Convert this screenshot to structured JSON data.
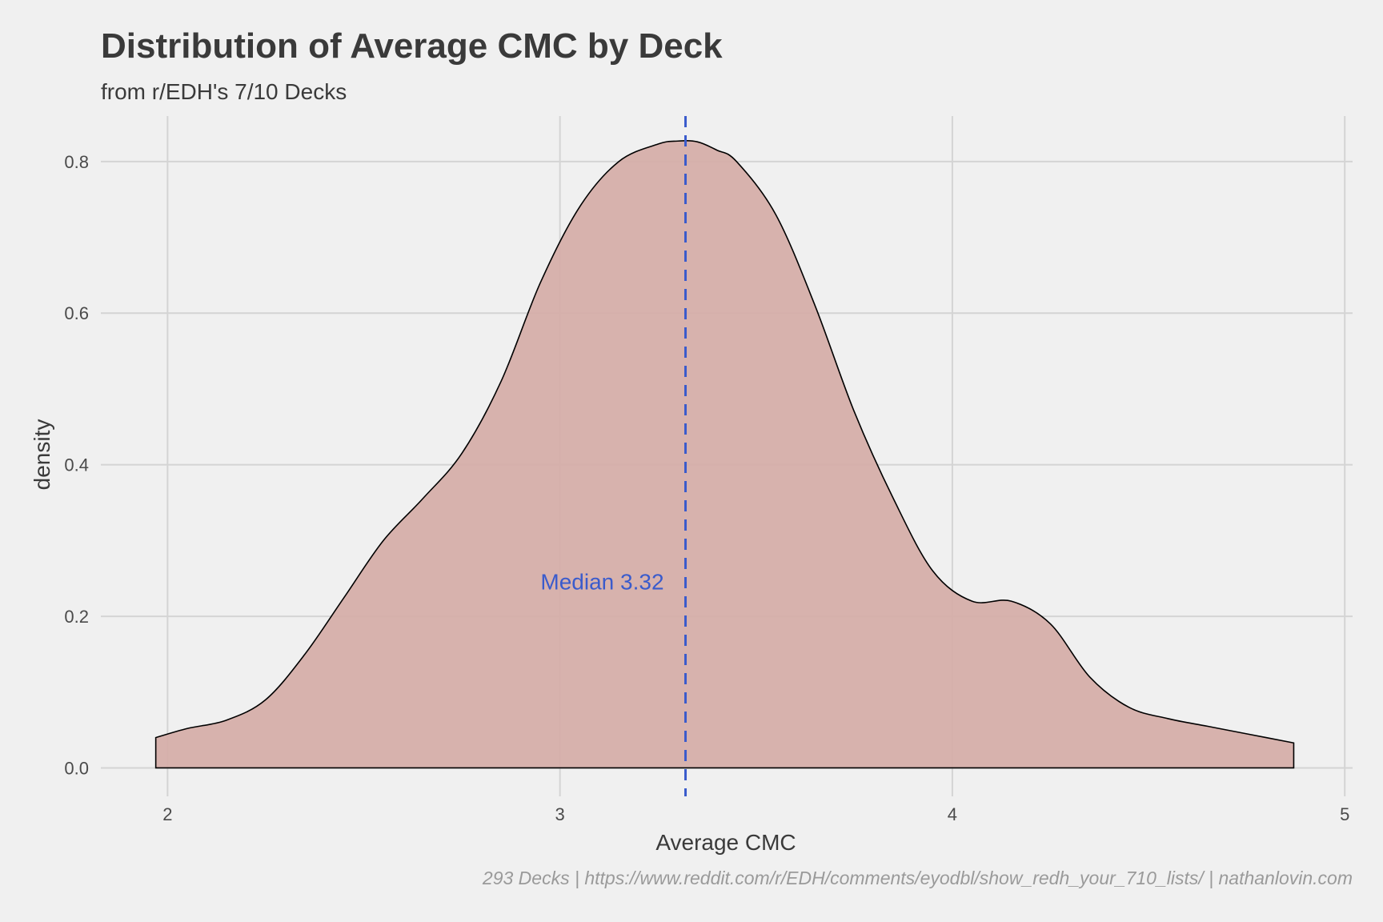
{
  "chart_data": {
    "type": "area",
    "title": "Distribution of Average CMC by Deck",
    "subtitle": "from r/EDH's 7/10 Decks",
    "xlabel": "Average CMC",
    "ylabel": "density",
    "caption": "293 Decks | https://www.reddit.com/r/EDH/comments/eyodbl/show_redh_your_710_lists/ | nathanlovin.com",
    "xlim": [
      1.83,
      5.02
    ],
    "ylim": [
      -0.0375,
      0.86
    ],
    "x_ticks": [
      2,
      3,
      4,
      5
    ],
    "x_tick_labels": [
      "2",
      "3",
      "4",
      "5"
    ],
    "y_ticks": [
      0.0,
      0.2,
      0.4,
      0.6,
      0.8
    ],
    "y_tick_labels": [
      "0.0",
      "0.2",
      "0.4",
      "0.6",
      "0.8"
    ],
    "grid": true,
    "fill_color": "#d5aea9",
    "line_color": "#000000",
    "series": [
      {
        "x": [
          1.97,
          2.05,
          2.15,
          2.25,
          2.35,
          2.45,
          2.55,
          2.65,
          2.75,
          2.85,
          2.95,
          3.05,
          3.15,
          3.25,
          3.3,
          3.35,
          3.4,
          3.45,
          3.55,
          3.65,
          3.75,
          3.85,
          3.95,
          4.05,
          4.15,
          4.25,
          4.35,
          4.45,
          4.55,
          4.65,
          4.75,
          4.87
        ],
        "y": [
          0.04,
          0.052,
          0.063,
          0.09,
          0.15,
          0.225,
          0.3,
          0.355,
          0.415,
          0.51,
          0.64,
          0.74,
          0.8,
          0.823,
          0.827,
          0.826,
          0.815,
          0.8,
          0.73,
          0.61,
          0.47,
          0.355,
          0.26,
          0.22,
          0.22,
          0.19,
          0.12,
          0.08,
          0.065,
          0.055,
          0.045,
          0.033
        ]
      }
    ],
    "annotations": [
      {
        "type": "vline",
        "x": 3.32,
        "style": "dashed",
        "color": "#3a5bcc",
        "label": "Median 3.32",
        "label_y": 0.245
      }
    ]
  }
}
